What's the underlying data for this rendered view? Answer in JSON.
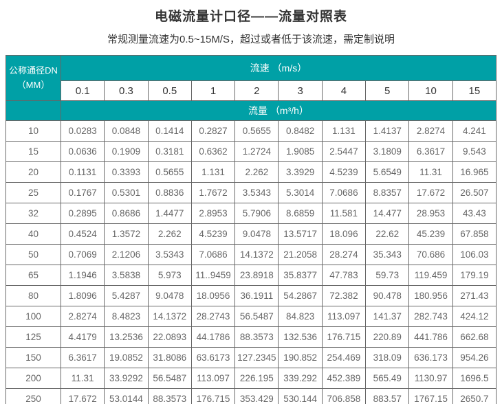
{
  "page": {
    "title": "电磁流量计口径——流量对照表",
    "subtitle": "常规测量流速为0.5~15M/S，超过或者低于该流速，需定制说明"
  },
  "colors": {
    "header_teal": "#00A0A6",
    "border": "#666666",
    "title_text": "#333333",
    "cell_text": "#666666"
  },
  "table": {
    "corner_line1": "公称通径DN",
    "corner_line2": "（MM）",
    "velocity_label": "流速 （m/s）",
    "flow_label": "流量 （m³/h）"
  },
  "chart_data": {
    "type": "table",
    "title": "电磁流量计口径——流量对照表",
    "note": "常规测量流速为0.5~15M/S，超过或者低于该流速，需定制说明",
    "row_header": "公称通径DN（MM）",
    "column_group_label": "流速（m/s）",
    "value_group_label": "流量（m³/h）",
    "columns": [
      "0.1",
      "0.3",
      "0.5",
      "1",
      "2",
      "3",
      "4",
      "5",
      "10",
      "15"
    ],
    "rows": [
      {
        "dn": "10",
        "values": [
          "0.0283",
          "0.0848",
          "0.1414",
          "0.2827",
          "0.5655",
          "0.8482",
          "1.131",
          "1.4137",
          "2.8274",
          "4.241"
        ]
      },
      {
        "dn": "15",
        "values": [
          "0.0636",
          "0.1909",
          "0.3181",
          "0.6362",
          "1.2724",
          "1.9085",
          "2.5447",
          "3.1809",
          "6.3617",
          "9.543"
        ]
      },
      {
        "dn": "20",
        "values": [
          "0.1131",
          "0.3393",
          "0.5655",
          "1.131",
          "2.262",
          "3.3929",
          "4.5239",
          "5.6549",
          "11.31",
          "16.965"
        ]
      },
      {
        "dn": "25",
        "values": [
          "0.1767",
          "0.5301",
          "0.8836",
          "1.7672",
          "3.5343",
          "5.3014",
          "7.0686",
          "8.8357",
          "17.672",
          "26.507"
        ]
      },
      {
        "dn": "32",
        "values": [
          "0.2895",
          "0.8686",
          "1.4477",
          "2.8953",
          "5.7906",
          "8.6859",
          "11.581",
          "14.477",
          "28.953",
          "43.43"
        ]
      },
      {
        "dn": "40",
        "values": [
          "0.4524",
          "1.3572",
          "2.262",
          "4.5239",
          "9.0478",
          "13.5717",
          "18.096",
          "22.62",
          "45.239",
          "67.858"
        ]
      },
      {
        "dn": "50",
        "values": [
          "0.7069",
          "2.1206",
          "3.5343",
          "7.0686",
          "14.1372",
          "21.2058",
          "28.274",
          "35.343",
          "70.686",
          "106.03"
        ]
      },
      {
        "dn": "65",
        "values": [
          "1.1946",
          "3.5838",
          "5.973",
          "11..9459",
          "23.8918",
          "35.8377",
          "47.783",
          "59.73",
          "119.459",
          "179.19"
        ]
      },
      {
        "dn": "80",
        "values": [
          "1.8096",
          "5.4287",
          "9.0478",
          "18.0956",
          "36.1911",
          "54.2867",
          "72.382",
          "90.478",
          "180.956",
          "271.43"
        ]
      },
      {
        "dn": "100",
        "values": [
          "2.8274",
          "8.4823",
          "14.1372",
          "28.2743",
          "56.5487",
          "84.823",
          "113.097",
          "141.37",
          "282.743",
          "424.12"
        ]
      },
      {
        "dn": "125",
        "values": [
          "4.4179",
          "13.2536",
          "22.0893",
          "44.1786",
          "88.3573",
          "132.536",
          "176.715",
          "220.89",
          "441.786",
          "662.68"
        ]
      },
      {
        "dn": "150",
        "values": [
          "6.3617",
          "19.0852",
          "31.8086",
          "63.6173",
          "127.2345",
          "190.852",
          "254.469",
          "318.09",
          "636.173",
          "954.26"
        ]
      },
      {
        "dn": "200",
        "values": [
          "11.31",
          "33.9292",
          "56.5487",
          "113.097",
          "226.195",
          "339.292",
          "452.389",
          "565.49",
          "1130.97",
          "1696.5"
        ]
      },
      {
        "dn": "250",
        "values": [
          "17.672",
          "53.0144",
          "88.3573",
          "176.715",
          "353.429",
          "530.144",
          "706.858",
          "883.57",
          "1767.15",
          "2650.7"
        ]
      }
    ]
  }
}
